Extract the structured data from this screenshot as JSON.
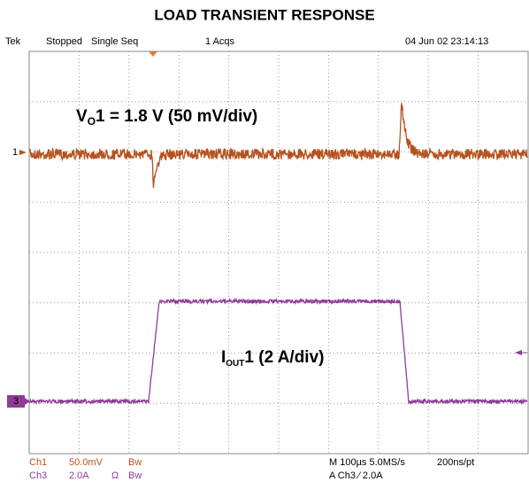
{
  "title": "LOAD TRANSIENT RESPONSE",
  "header": {
    "brand": "Tek",
    "state": "Stopped",
    "mode": "Single Seq",
    "acqs": "1 Acqs",
    "datetime": "04 Jun 02 23:14:13"
  },
  "annotations": {
    "vout": {
      "main": "V",
      "sub": "O",
      "rest": "1 = 1.8 V (50 mV/div)"
    },
    "iout": {
      "main": "I",
      "sub": "OUT",
      "rest": "1 (2 A/div)"
    }
  },
  "markers": {
    "ch1": "1",
    "ch3": "3"
  },
  "footer": {
    "ch1": {
      "name": "Ch1",
      "scale": "50.0mV",
      "bw": "Bw"
    },
    "ch3": {
      "name": "Ch3",
      "scale": "2.0A",
      "ohm": "Ω",
      "bw": "Bw"
    },
    "timebase": "M 100µs 5.0MS/s",
    "resolution": "200ns/pt",
    "trigger": "A  Ch3  ⁄  2.0A"
  }
}
